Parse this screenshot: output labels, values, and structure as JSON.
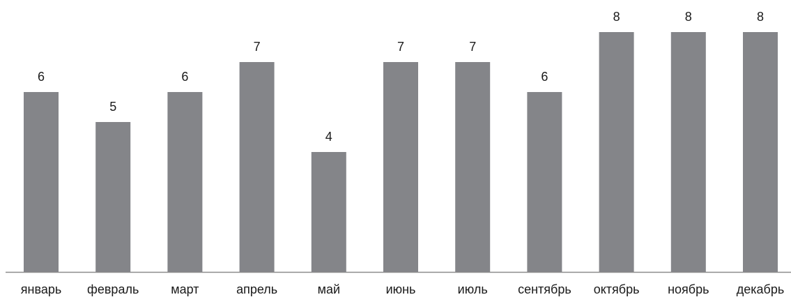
{
  "chart_data": {
    "type": "bar",
    "categories": [
      "январь",
      "февраль",
      "март",
      "апрель",
      "май",
      "июнь",
      "июль",
      "сентябрь",
      "октябрь",
      "ноябрь",
      "декабрь"
    ],
    "values": [
      6,
      5,
      6,
      7,
      4,
      7,
      7,
      6,
      8,
      8,
      8
    ],
    "title": "",
    "xlabel": "",
    "ylabel": "",
    "ylim": [
      0,
      8
    ],
    "grid": false,
    "legend": "none",
    "bar_color": "#848589",
    "axis_color": "#8c8c8c",
    "text_color": "#1a1a1a"
  }
}
